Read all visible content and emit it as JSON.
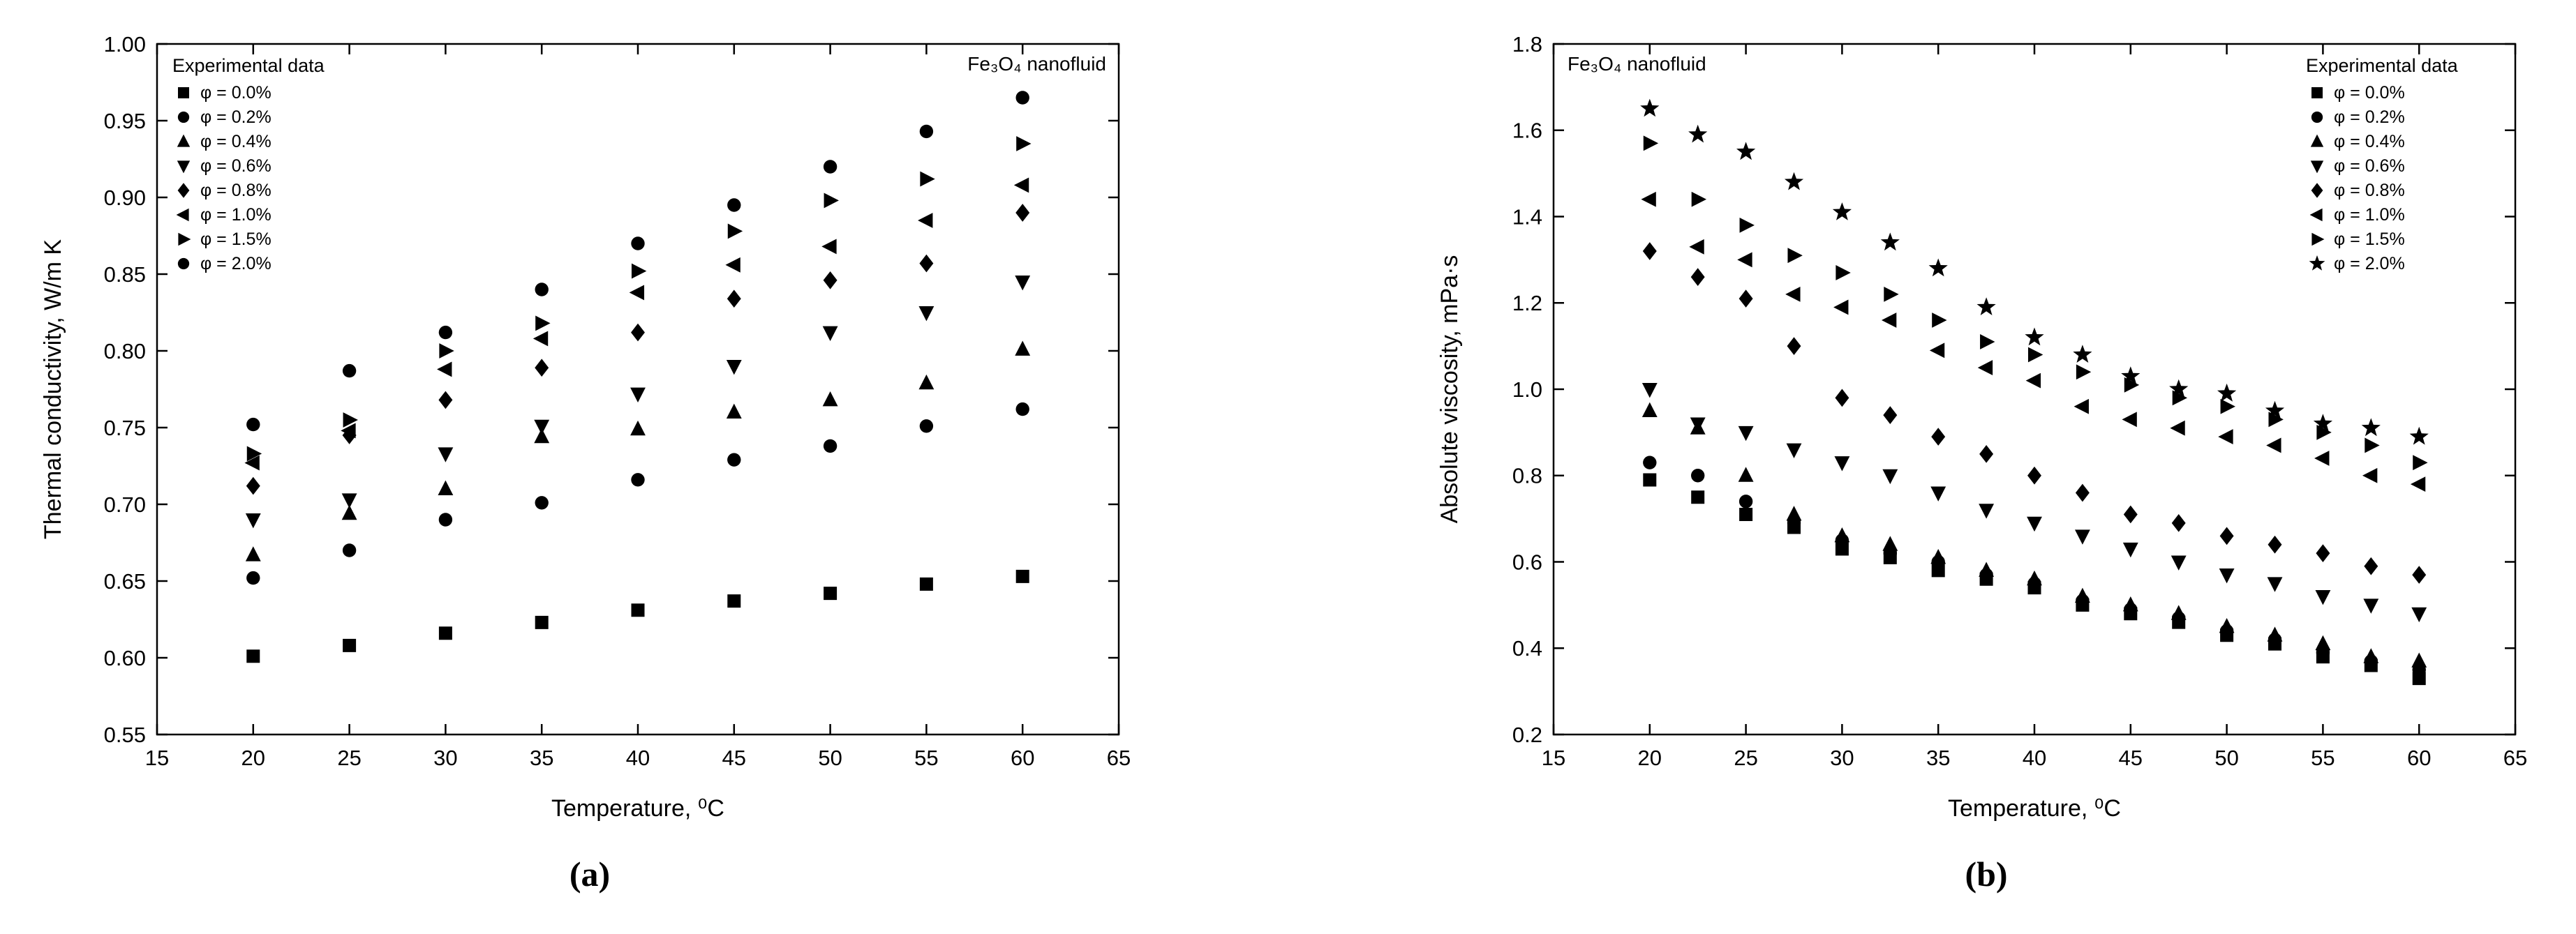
{
  "page": {
    "background": "#ffffff",
    "foreground": "#000000"
  },
  "panels": [
    {
      "caption": "(a)"
    },
    {
      "caption": "(b)"
    }
  ],
  "chart_data": [
    {
      "id": "a",
      "type": "scatter",
      "annotation": "Fe₃O₄ nanofluid",
      "annotation_position": "top-right",
      "legend_title": "Experimental data",
      "legend_position": "top-left",
      "xlabel": "Temperature, ⁰C",
      "ylabel": "Thermal conductivity, W/m K",
      "xlim": [
        15,
        65
      ],
      "ylim": [
        0.55,
        1.0
      ],
      "xticks": [
        15,
        20,
        25,
        30,
        35,
        40,
        45,
        50,
        55,
        60,
        65
      ],
      "yticks": [
        "0.55",
        "0.60",
        "0.65",
        "0.70",
        "0.75",
        "0.80",
        "0.85",
        "0.90",
        "0.95",
        "1.00"
      ],
      "grid": false,
      "x": [
        20,
        25,
        30,
        35,
        40,
        45,
        50,
        55,
        60
      ],
      "series": [
        {
          "name": "φ = 0.0%",
          "marker": "square",
          "values": [
            0.601,
            0.608,
            0.616,
            0.623,
            0.631,
            0.637,
            0.642,
            0.648,
            0.653
          ]
        },
        {
          "name": "φ = 0.2%",
          "marker": "circle",
          "values": [
            0.652,
            0.67,
            0.69,
            0.701,
            0.716,
            0.729,
            0.738,
            0.751,
            0.762
          ]
        },
        {
          "name": "φ = 0.4%",
          "marker": "triangle-up",
          "values": [
            0.667,
            0.694,
            0.71,
            0.744,
            0.749,
            0.76,
            0.768,
            0.779,
            0.801
          ]
        },
        {
          "name": "φ = 0.6%",
          "marker": "triangle-down",
          "values": [
            0.69,
            0.703,
            0.733,
            0.751,
            0.772,
            0.79,
            0.812,
            0.825,
            0.845
          ]
        },
        {
          "name": "φ = 0.8%",
          "marker": "diamond",
          "values": [
            0.712,
            0.745,
            0.768,
            0.789,
            0.812,
            0.834,
            0.846,
            0.857,
            0.89
          ]
        },
        {
          "name": "φ = 1.0%",
          "marker": "triangle-left",
          "values": [
            0.727,
            0.748,
            0.788,
            0.808,
            0.838,
            0.856,
            0.868,
            0.885,
            0.908
          ]
        },
        {
          "name": "φ = 1.5%",
          "marker": "triangle-right",
          "values": [
            0.733,
            0.755,
            0.8,
            0.818,
            0.852,
            0.878,
            0.898,
            0.912,
            0.935
          ]
        },
        {
          "name": "φ = 2.0%",
          "marker": "circle",
          "values": [
            0.752,
            0.787,
            0.812,
            0.84,
            0.87,
            0.895,
            0.92,
            0.943,
            0.965
          ]
        }
      ]
    },
    {
      "id": "b",
      "type": "scatter",
      "annotation": "Fe₃O₄ nanofluid",
      "annotation_position": "top-left",
      "legend_title": "Experimental data",
      "legend_position": "top-right",
      "xlabel": "Temperature, ⁰C",
      "ylabel": "Absolute viscosity, mPa·s",
      "xlim": [
        15,
        65
      ],
      "ylim": [
        0.2,
        1.8
      ],
      "xticks": [
        15,
        20,
        25,
        30,
        35,
        40,
        45,
        50,
        55,
        60,
        65
      ],
      "yticks": [
        "0.2",
        "0.4",
        "0.6",
        "0.8",
        "1.0",
        "1.2",
        "1.4",
        "1.6",
        "1.8"
      ],
      "grid": false,
      "x": [
        20,
        22.5,
        25,
        27.5,
        30,
        32.5,
        35,
        37.5,
        40,
        42.5,
        45,
        47.5,
        50,
        52.5,
        55,
        57.5,
        60
      ],
      "series": [
        {
          "name": "φ = 0.0%",
          "marker": "square",
          "values": [
            0.79,
            0.75,
            0.71,
            0.68,
            0.63,
            0.61,
            0.58,
            0.56,
            0.54,
            0.5,
            0.48,
            0.46,
            0.43,
            0.41,
            0.38,
            0.36,
            0.33
          ]
        },
        {
          "name": "φ = 0.2%",
          "marker": "circle",
          "values": [
            0.83,
            0.8,
            0.74,
            0.69,
            0.65,
            0.62,
            0.6,
            0.57,
            0.55,
            0.51,
            0.49,
            0.47,
            0.44,
            0.42,
            0.39,
            0.37,
            0.35
          ]
        },
        {
          "name": "φ = 0.4%",
          "marker": "triangle-up",
          "values": [
            0.95,
            0.91,
            0.8,
            0.71,
            0.66,
            0.64,
            0.61,
            0.58,
            0.56,
            0.52,
            0.5,
            0.48,
            0.45,
            0.43,
            0.41,
            0.38,
            0.37
          ]
        },
        {
          "name": "φ = 0.6%",
          "marker": "triangle-down",
          "values": [
            1.0,
            0.92,
            0.9,
            0.86,
            0.83,
            0.8,
            0.76,
            0.72,
            0.69,
            0.66,
            0.63,
            0.6,
            0.57,
            0.55,
            0.52,
            0.5,
            0.48
          ]
        },
        {
          "name": "φ = 0.8%",
          "marker": "diamond",
          "values": [
            1.32,
            1.26,
            1.21,
            1.1,
            0.98,
            0.94,
            0.89,
            0.85,
            0.8,
            0.76,
            0.71,
            0.69,
            0.66,
            0.64,
            0.62,
            0.59,
            0.57
          ]
        },
        {
          "name": "φ = 1.0%",
          "marker": "triangle-left",
          "values": [
            1.44,
            1.33,
            1.3,
            1.22,
            1.19,
            1.16,
            1.09,
            1.05,
            1.02,
            0.96,
            0.93,
            0.91,
            0.89,
            0.87,
            0.84,
            0.8,
            0.78
          ]
        },
        {
          "name": "φ = 1.5%",
          "marker": "triangle-right",
          "values": [
            1.57,
            1.44,
            1.38,
            1.31,
            1.27,
            1.22,
            1.16,
            1.11,
            1.08,
            1.04,
            1.01,
            0.98,
            0.96,
            0.93,
            0.9,
            0.87,
            0.83
          ]
        },
        {
          "name": "φ = 2.0%",
          "marker": "star",
          "values": [
            1.65,
            1.59,
            1.55,
            1.48,
            1.41,
            1.34,
            1.28,
            1.19,
            1.12,
            1.08,
            1.03,
            1.0,
            0.99,
            0.95,
            0.92,
            0.91,
            0.89
          ]
        }
      ]
    }
  ]
}
